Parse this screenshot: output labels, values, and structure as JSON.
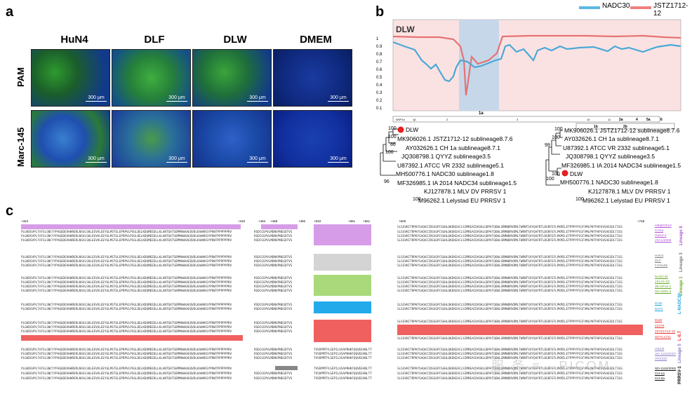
{
  "panel_a": {
    "letter": "a",
    "columns": [
      "HuN4",
      "DLF",
      "DLW",
      "DMEM"
    ],
    "rows": [
      "PAM",
      "Marc-145"
    ],
    "scale": "300 μm"
  },
  "panel_b": {
    "letter": "b",
    "plot_label": "DLW",
    "legend": [
      {
        "name": "NADC30",
        "color": "#5bb8e0"
      },
      {
        "name": "JSTZ1712-12",
        "color": "#f08080"
      }
    ],
    "y_ticks": [
      "1",
      "0.9",
      "0.8",
      "0.7",
      "0.6",
      "0.5",
      "0.4",
      "0.3",
      "0.2",
      "0.1"
    ],
    "genome_labels": [
      "NSP1α",
      "1β",
      "2",
      "1a",
      "3",
      "5",
      "7",
      "9",
      "10",
      "11",
      "12",
      "2a",
      "4",
      "5a",
      "6",
      "1b",
      "2b",
      "3",
      "5",
      "7"
    ],
    "tree_left": {
      "labels": [
        "DLW",
        "MK906026.1 JSTZ1712-12 sublineage8.7.6",
        "AY032626.1 CH 1a sublineage8.7.1",
        "JQ308798.1 QYYZ sublineage3.5",
        "U87392.1 ATCC VR 2332 sublineage5.1",
        "MH500776.1 NADC30 sublineage1.8",
        "MF326985.1 IA 2014 NADC34 sublineage1.5",
        "KJ127878.1 MLV DV PRRSV 1",
        "M96262.1 Lelystad EU PRRSV 1"
      ],
      "boot": [
        "100",
        "100",
        "86",
        "100",
        "96",
        "100"
      ]
    },
    "tree_right": {
      "labels": [
        "MK906026.1 JSTZ1712-12 sublineage8.7.6",
        "AY032626.1 CH 1a sublineage8.7.1",
        "U87392.1 ATCC VR 2332 sublineage5.1",
        "JQ308798.1 QYYZ sublineage3.5",
        "MF326985.1 IA 2014 NADC34 sublineage1.5",
        "DLW",
        "MH500776.1 NADC30 sublineage1.8",
        "KJ127878.1 MLV DV PRRSV 1",
        "M96262.1 Lelystad EU PRRSV 1"
      ],
      "boot": [
        "100",
        "100",
        "99",
        "100",
        "100",
        "100"
      ]
    }
  },
  "panel_c": {
    "letter": "c",
    "positions": [
      "+324",
      "+434",
      "+464",
      "+468",
      "+482",
      "+533",
      "+551",
      "+561",
      "+629",
      "+748"
    ],
    "seq_text": "PLGKDSVPLTAFSLSNCYYPAQGDEVHHRERLNSVLSKLEEVVLEEYGLMSTGLEPRPVLPSGLDELKDQMEEDLLKLANTQATSEMMAWAAEQVDLKAWVKSYPRWTPPPPPPRV",
    "seq_text2": "RSDCGSPVLMDNVPNEGDTVS",
    "seq_text3": "SLSSVKITRPKYSAQAIIDSGGPCSGHLQKEKEACLSIMREACDASKLGDPATQEWLSRMWDRVDMLTWRNTSVYQAFRTLDGRFEFLPKMILETPPPYPCGFVMLPHTPAPSVSAESDLTIGS",
    "seq_text4": "TVSRPMTPLSEPILVSAPRHKFQQVEEANLTT",
    "groups": [
      {
        "label": "Lineage 8",
        "color": "#b455d6",
        "strains": [
          "HB/j8/2018",
          "CH1a",
          "HuN4-2",
          "JXA1/2006"
        ]
      },
      {
        "label": "Lineage 3",
        "color": "#7a7a7a",
        "strains": [
          "HuN4",
          "DLF",
          "FJ/Hu06"
        ]
      },
      {
        "label": "Lineage 1",
        "color": "#7cbf3a",
        "strains": [
          "NADC30",
          "JXLX1-33",
          "JB-DP12-2",
          "SD-2002-3"
        ]
      },
      {
        "label": "L-NADC30",
        "color": "#1aa7e0",
        "strains": [
          "DLW",
          "DLF2"
        ]
      },
      {
        "label": "L-8.7",
        "color": "#e8312f",
        "strains": [
          "DLW",
          "21375",
          "JSTZ1712-12",
          "SDYL1711"
        ]
      },
      {
        "label": "Lineage 5",
        "color": "#8e7cc3",
        "strains": [
          "HB2/9",
          "SD-1110/2007",
          "VR2332"
        ]
      },
      {
        "label": "PRRSV-1",
        "color": "#111111",
        "strains": [
          "SD-1110/2002",
          "CH-1a",
          "CH-2a"
        ]
      }
    ]
  },
  "watermark": "服 务 ≡ · PICOM"
}
